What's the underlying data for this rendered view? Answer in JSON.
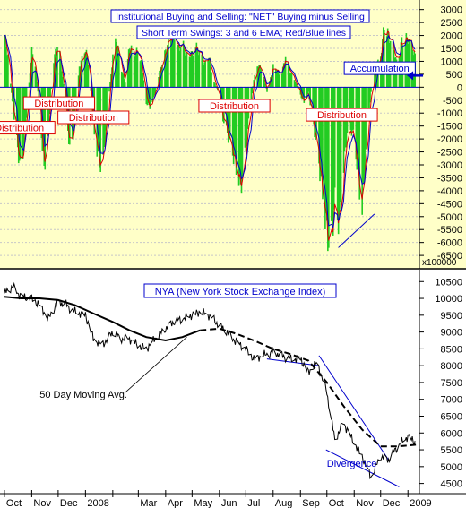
{
  "chart_data": [
    {
      "type": "bar",
      "panel": "top",
      "title": "Institutional Buying and Selling: \"NET\" Buying minus Selling",
      "subtitle": "Short Term Swings: 3 and 6 EMA; Red/Blue lines",
      "units_label": "x100000",
      "ylim": [
        -6600,
        3300
      ],
      "yticks": [
        3000,
        2500,
        2000,
        1500,
        1000,
        500,
        0,
        -500,
        -1000,
        -1500,
        -2000,
        -2500,
        -3000,
        -3500,
        -4000,
        -4500,
        -5000,
        -5500,
        -6000,
        -6500
      ],
      "grid": true,
      "bar_color": "#22cc22",
      "background": "#ffffc8",
      "annotations": [
        {
          "label": "Distribution",
          "date": "2007-10-18",
          "value": -1600
        },
        {
          "label": "Distribution",
          "date": "2007-12-02",
          "value": -650
        },
        {
          "label": "Distribution",
          "date": "2008-01-10",
          "value": -1200
        },
        {
          "label": "Distribution",
          "date": "2008-06-18",
          "value": -750
        },
        {
          "label": "Distribution",
          "date": "2008-10-18",
          "value": -1100
        },
        {
          "label": "Accumulation",
          "date": "2008-11-30",
          "value": 700
        }
      ],
      "arrow": {
        "date": "2009-01-10",
        "value": 450
      },
      "trendline": [
        {
          "date": "2008-10-14",
          "value": -6200
        },
        {
          "date": "2008-11-24",
          "value": -4900
        }
      ],
      "series": [
        {
          "x": [
            "2007-10-01",
            "2007-10-05",
            "2007-10-10",
            "2007-10-15",
            "2007-10-20",
            "2007-10-25",
            "2007-11-01",
            "2007-11-05",
            "2007-11-10",
            "2007-11-15",
            "2007-11-20",
            "2007-11-25",
            "2007-12-01",
            "2007-12-05",
            "2007-12-10",
            "2007-12-15",
            "2007-12-20",
            "2007-12-25",
            "2008-01-01",
            "2008-01-05",
            "2008-01-10",
            "2008-01-15",
            "2008-01-20",
            "2008-01-25",
            "2008-02-01",
            "2008-02-05",
            "2008-02-10",
            "2008-02-15",
            "2008-02-20",
            "2008-02-25",
            "2008-03-01",
            "2008-03-05",
            "2008-03-10",
            "2008-03-15",
            "2008-03-20",
            "2008-03-25",
            "2008-04-01",
            "2008-04-05",
            "2008-04-10",
            "2008-04-15",
            "2008-04-20",
            "2008-04-25",
            "2008-05-01",
            "2008-05-05",
            "2008-05-10",
            "2008-05-15",
            "2008-05-20",
            "2008-05-25",
            "2008-06-01",
            "2008-06-05",
            "2008-06-10",
            "2008-06-15",
            "2008-06-20",
            "2008-06-25",
            "2008-07-01",
            "2008-07-05",
            "2008-07-10",
            "2008-07-15",
            "2008-07-20",
            "2008-07-25",
            "2008-08-01",
            "2008-08-05",
            "2008-08-10",
            "2008-08-15",
            "2008-08-20",
            "2008-08-25",
            "2008-09-01",
            "2008-09-05",
            "2008-09-10",
            "2008-09-15",
            "2008-09-20",
            "2008-09-25",
            "2008-10-01",
            "2008-10-05",
            "2008-10-10",
            "2008-10-15",
            "2008-10-20",
            "2008-10-25",
            "2008-11-01",
            "2008-11-05",
            "2008-11-10",
            "2008-11-15",
            "2008-11-20",
            "2008-11-25",
            "2008-12-01",
            "2008-12-05",
            "2008-12-10",
            "2008-12-15",
            "2008-12-20",
            "2008-12-25",
            "2009-01-01",
            "2009-01-05",
            "2009-01-10"
          ],
          "values": [
            2000,
            1200,
            -600,
            -2100,
            -3400,
            -1500,
            1400,
            900,
            -900,
            -3200,
            -1500,
            900,
            1800,
            700,
            -800,
            -2800,
            -1200,
            800,
            1500,
            800,
            -1600,
            -2600,
            -3300,
            -1200,
            1200,
            1900,
            800,
            200,
            1600,
            1300,
            1400,
            900,
            -600,
            -800,
            -200,
            600,
            1400,
            1900,
            2100,
            1500,
            1700,
            1200,
            1300,
            1600,
            1300,
            900,
            1200,
            300,
            -300,
            -1200,
            -1800,
            -2400,
            -3100,
            -3900,
            -2400,
            -1000,
            300,
            900,
            600,
            -200,
            800,
            700,
            400,
            1200,
            600,
            300,
            -300,
            -600,
            -200,
            -1300,
            -2400,
            -3800,
            -5600,
            -6200,
            -4400,
            -5300,
            -3100,
            -1400,
            -1900,
            -3300,
            -4800,
            -1900,
            -200,
            700,
            1200,
            2400,
            2000,
            1600,
            800,
            1800,
            1900,
            1600,
            1100
          ]
        }
      ]
    },
    {
      "type": "line",
      "panel": "bottom",
      "title": "NYA (New York Stock Exchange Index)",
      "ylim": [
        4250,
        10800
      ],
      "yticks": [
        10500,
        10000,
        9500,
        9000,
        8500,
        8000,
        7500,
        7000,
        6500,
        6000,
        5500,
        5000,
        4500
      ],
      "x_tick_labels": [
        "Oct",
        "Nov",
        "Dec",
        "2008",
        "Mar",
        "Apr",
        "May",
        "Jun",
        "Jul",
        "Aug",
        "Sep",
        "Oct",
        "Nov",
        "Dec",
        "2009"
      ],
      "annotations": [
        {
          "label": "50 Day Moving Avg.",
          "date": "2007-11-10",
          "value": 7050
        },
        {
          "label": "Divergence",
          "date": "2008-10-01",
          "value": 5000
        }
      ],
      "trendlines": [
        {
          "points": [
            {
              "date": "2008-09-22",
              "value": 8300
            },
            {
              "date": "2008-12-10",
              "value": 5200
            }
          ]
        },
        {
          "points": [
            {
              "date": "2008-07-25",
              "value": 8200
            },
            {
              "date": "2008-09-22",
              "value": 8000
            }
          ]
        },
        {
          "points": [
            {
              "date": "2008-09-30",
              "value": 5500
            },
            {
              "date": "2008-12-22",
              "value": 4400
            }
          ]
        }
      ],
      "series": [
        {
          "name": "NYA",
          "color": "#000000",
          "x": [
            "2007-10-01",
            "2007-10-10",
            "2007-10-20",
            "2007-11-01",
            "2007-11-10",
            "2007-11-20",
            "2007-12-01",
            "2007-12-10",
            "2007-12-20",
            "2008-01-01",
            "2008-01-10",
            "2008-01-20",
            "2008-02-01",
            "2008-02-10",
            "2008-02-20",
            "2008-03-01",
            "2008-03-10",
            "2008-03-20",
            "2008-04-01",
            "2008-04-10",
            "2008-04-20",
            "2008-05-01",
            "2008-05-10",
            "2008-05-20",
            "2008-06-01",
            "2008-06-10",
            "2008-06-20",
            "2008-07-01",
            "2008-07-10",
            "2008-07-20",
            "2008-08-01",
            "2008-08-10",
            "2008-08-20",
            "2008-09-01",
            "2008-09-10",
            "2008-09-20",
            "2008-10-01",
            "2008-10-10",
            "2008-10-20",
            "2008-11-01",
            "2008-11-10",
            "2008-11-20",
            "2008-12-01",
            "2008-12-10",
            "2008-12-20",
            "2009-01-01",
            "2009-01-10"
          ],
          "values": [
            10150,
            10350,
            10050,
            10000,
            9800,
            9400,
            9900,
            9800,
            9600,
            9500,
            8800,
            8600,
            9000,
            8800,
            8800,
            8600,
            8500,
            8800,
            9100,
            9300,
            9400,
            9500,
            9600,
            9500,
            9200,
            9000,
            8700,
            8500,
            8200,
            8300,
            8400,
            8300,
            8200,
            8200,
            7800,
            8100,
            7200,
            5800,
            6300,
            5700,
            5300,
            4700,
            5300,
            5200,
            5600,
            5900,
            5700
          ]
        },
        {
          "name": "50 Day Moving Avg.",
          "color": "#000000",
          "x": [
            "2007-10-01",
            "2007-10-20",
            "2007-11-10",
            "2007-12-01",
            "2007-12-20",
            "2008-01-10",
            "2008-02-01",
            "2008-02-20",
            "2008-03-10",
            "2008-04-01",
            "2008-04-20",
            "2008-05-10",
            "2008-06-01",
            "2008-06-20",
            "2008-07-10",
            "2008-08-01",
            "2008-08-20",
            "2008-09-10",
            "2008-10-01",
            "2008-10-20",
            "2008-11-10",
            "2008-12-01",
            "2008-12-20",
            "2009-01-10"
          ],
          "values": [
            10050,
            10000,
            10000,
            9950,
            9800,
            9550,
            9300,
            9050,
            8850,
            8750,
            8850,
            9050,
            9100,
            8950,
            8750,
            8500,
            8350,
            8150,
            7500,
            6800,
            6100,
            5600,
            5600,
            5650
          ]
        }
      ]
    }
  ]
}
